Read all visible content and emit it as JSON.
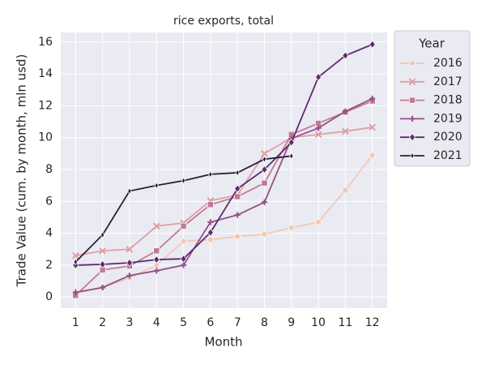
{
  "chart_data": {
    "type": "line",
    "title": "rice exports, total",
    "xlabel": "Month",
    "ylabel": "Trade Value (cum. by month, mln usd)",
    "x": [
      1,
      2,
      3,
      4,
      5,
      6,
      7,
      8,
      9,
      10,
      11,
      12
    ],
    "xlim": [
      0.45,
      12.55
    ],
    "xticks": [
      1,
      2,
      3,
      4,
      5,
      6,
      7,
      8,
      9,
      10,
      11,
      12
    ],
    "ylim": [
      -0.7,
      16.6
    ],
    "yticks": [
      0,
      2,
      4,
      6,
      8,
      10,
      12,
      14,
      16
    ],
    "grid": true,
    "legend_title": "Year",
    "legend_position": "outside right",
    "series": [
      {
        "name": "2016",
        "color": "#efcab7",
        "marker": "circle",
        "values": [
          0.25,
          0.6,
          1.2,
          2.0,
          3.5,
          3.6,
          3.8,
          3.95,
          4.35,
          4.7,
          6.7,
          8.9
        ]
      },
      {
        "name": "2017",
        "color": "#dca1a3",
        "marker": "x",
        "values": [
          2.6,
          2.9,
          3.0,
          4.45,
          4.65,
          6.05,
          6.4,
          9.0,
          10.0,
          10.2,
          10.4,
          10.65
        ]
      },
      {
        "name": "2018",
        "color": "#c27a92",
        "marker": "square",
        "values": [
          0.1,
          1.7,
          1.95,
          2.9,
          4.45,
          5.8,
          6.3,
          7.15,
          10.2,
          10.9,
          11.6,
          12.3
        ]
      },
      {
        "name": "2019",
        "color": "#955086",
        "marker": "plus",
        "values": [
          0.3,
          0.6,
          1.35,
          1.65,
          2.0,
          4.7,
          5.15,
          5.95,
          9.95,
          10.6,
          11.65,
          12.45
        ]
      },
      {
        "name": "2020",
        "color": "#5e2d6c",
        "marker": "diamond",
        "values": [
          2.0,
          2.05,
          2.15,
          2.35,
          2.4,
          4.05,
          6.8,
          8.0,
          9.7,
          13.8,
          15.15,
          15.85
        ]
      },
      {
        "name": "2021",
        "color": "#2b1d3c",
        "marker": "thin_diamond",
        "values": [
          2.2,
          3.9,
          6.65,
          7.0,
          7.3,
          7.7,
          7.8,
          8.65,
          8.85,
          null,
          null,
          null
        ]
      }
    ]
  }
}
